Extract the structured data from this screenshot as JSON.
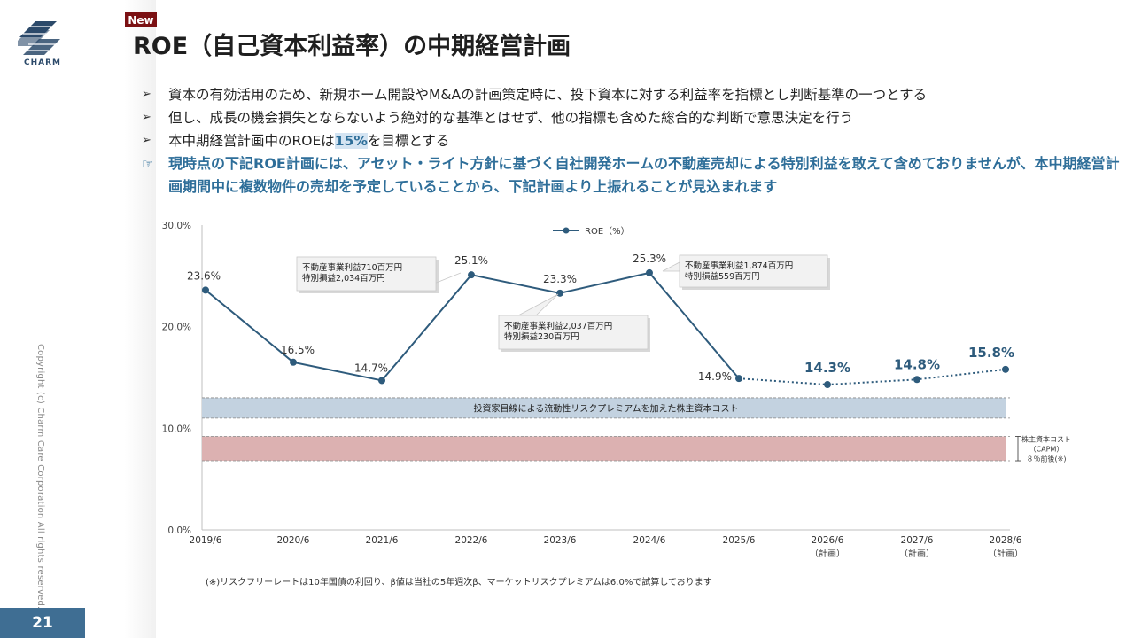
{
  "page": {
    "badge": "New",
    "title": "ROE（自己資本利益率）の中期経営計画",
    "logo_text": "CHARM",
    "copyright": "Copyright (c) Charm Care Corporation All rights reserved.",
    "page_number": "21",
    "bullet_mark": "➢",
    "pointer_mark": "☞",
    "bullets": [
      "資本の有効活用のため、新規ホーム開設やM&Aの計画策定時に、投下資本に対する利益率を指標とし判断基準の一つとする",
      "但し、成長の機会損失とならないよう絶対的な基準とはせず、他の指標も含めた総合的な判断で意思決定を行う"
    ],
    "bullet3": {
      "before": "本中期経営計画中のROEは",
      "highlight": "15%",
      "after": "を目標とする"
    },
    "note": "現時点の下記ROE計画には、アセット・ライト方針に基づく自社開発ホームの不動産売却による特別利益を敢えて含めておりませんが、本中期経営計画期間中に複数物件の売却を予定していることから、下記計画より上振れることが見込まれます",
    "footnote": "(※)リスクフリーレートは10年国債の利回り、β値は当社の5年週次β、マーケットリスクプレミアムは6.0%で試算しております",
    "colors": {
      "brand": "#2c4a6a",
      "accent": "#2e6e99",
      "badge": "#7b1113",
      "line": "#2e5b7c"
    }
  },
  "chart_data": {
    "type": "line",
    "legend": "ROE（%）",
    "categories": [
      "2019/6",
      "2020/6",
      "2021/6",
      "2022/6",
      "2023/6",
      "2024/6",
      "2025/6",
      "2026/6",
      "2027/6",
      "2028/6"
    ],
    "category_sublabels": [
      "",
      "",
      "",
      "",
      "",
      "",
      "",
      "（計画）",
      "（計画）",
      "（計画）"
    ],
    "values": [
      23.6,
      16.5,
      14.7,
      25.1,
      23.3,
      25.3,
      14.9,
      14.3,
      14.8,
      15.8
    ],
    "value_labels": [
      "23.6%",
      "16.5%",
      "14.7%",
      "25.1%",
      "23.3%",
      "25.3%",
      "14.9%",
      "14.3%",
      "14.8%",
      "15.8%"
    ],
    "plan_start_index": 6,
    "y_ticks": [
      "0.0%",
      "10.0%",
      "20.0%",
      "30.0%"
    ],
    "y_tick_values": [
      0,
      10,
      20,
      30
    ],
    "ylim": [
      0,
      30
    ],
    "bands": [
      {
        "label": "投資家目線による流動性リスクプレミアムを加えた株主資本コスト",
        "from": 11.0,
        "to": 13.0,
        "color": "#c3d2e0"
      },
      {
        "label": "",
        "from": 6.8,
        "to": 9.2,
        "color": "#dcb1b1"
      }
    ],
    "side_note": [
      "株主資本コスト",
      "（CAPM）",
      "８％前後(※)"
    ],
    "callouts": [
      {
        "lines": [
          "不動産事業利益710百万円",
          "特別損益2,034百万円"
        ],
        "point_index": 3
      },
      {
        "lines": [
          "不動産事業利益2,037百万円",
          "特別損益230百万円"
        ],
        "point_index": 4
      },
      {
        "lines": [
          "不動産事業利益1,874百万円",
          "特別損益559百万円"
        ],
        "point_index": 5
      }
    ]
  }
}
